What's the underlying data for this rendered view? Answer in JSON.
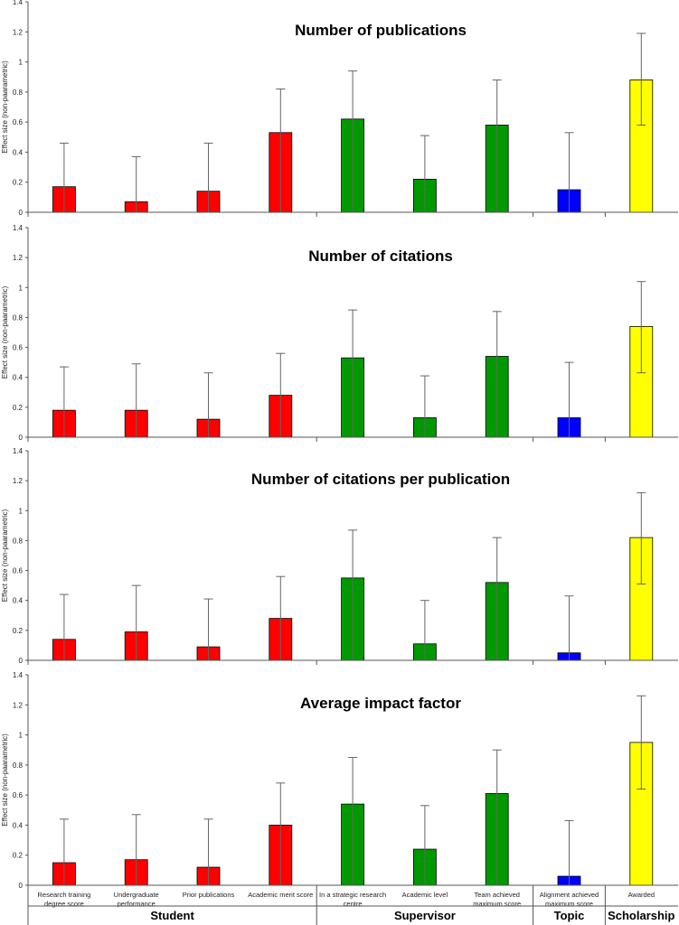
{
  "colors": {
    "student": "#ff0000",
    "supervisor": "#009900",
    "topic": "#0000ff",
    "scholarship": "#ffff00",
    "axis": "#555555",
    "error_bar": "#666666"
  },
  "chart_data": [
    {
      "type": "bar",
      "title": "Number of publications",
      "ylabel": "Effect size (non-paarametric)",
      "ylim": [
        0,
        1.4
      ],
      "yticks": [
        "0",
        "0.2",
        "0.4",
        "0.6",
        "0.8",
        "1",
        "1.2",
        "1.4"
      ],
      "categories": [
        "Research training degree score",
        "Undergraduate performance",
        "Prior publications",
        "Academic merit score",
        "In a strategic research centre",
        "Academic level",
        "Team achieved maximum score",
        "Alignment achieved maximum score",
        "Awarded"
      ],
      "values": [
        0.17,
        0.07,
        0.14,
        0.53,
        0.62,
        0.22,
        0.58,
        0.15,
        0.88
      ],
      "error_upper": [
        0.46,
        0.37,
        0.46,
        0.82,
        0.94,
        0.51,
        0.88,
        0.53,
        1.19
      ],
      "error_lower": [
        null,
        null,
        null,
        null,
        null,
        null,
        null,
        null,
        0.58
      ]
    },
    {
      "type": "bar",
      "title": "Number of citations",
      "ylabel": "Effect size (non-paarametric)",
      "ylim": [
        0,
        1.4
      ],
      "yticks": [
        "0",
        "0.2",
        "0.4",
        "0.6",
        "0.8",
        "1",
        "1.2",
        "1.4"
      ],
      "categories": [
        "Research training degree score",
        "Undergraduate performance",
        "Prior publications",
        "Academic merit score",
        "In a strategic research centre",
        "Academic level",
        "Team achieved maximum score",
        "Alignment achieved maximum score",
        "Awarded"
      ],
      "values": [
        0.18,
        0.18,
        0.12,
        0.28,
        0.53,
        0.13,
        0.54,
        0.13,
        0.74
      ],
      "error_upper": [
        0.47,
        0.49,
        0.43,
        0.56,
        0.85,
        0.41,
        0.84,
        0.5,
        1.04
      ],
      "error_lower": [
        null,
        null,
        null,
        null,
        null,
        null,
        null,
        null,
        0.43
      ]
    },
    {
      "type": "bar",
      "title": "Number of citations per publication",
      "ylabel": "Effect size (non-paarametric)",
      "ylim": [
        0,
        1.4
      ],
      "yticks": [
        "0",
        "0.2",
        "0.4",
        "0.6",
        "0.8",
        "1",
        "1.2",
        "1.4"
      ],
      "categories": [
        "Research training degree score",
        "Undergraduate performance",
        "Prior publications",
        "Academic merit score",
        "In a strategic research centre",
        "Academic level",
        "Team achieved maximum score",
        "Alignment achieved maximum score",
        "Awarded"
      ],
      "values": [
        0.14,
        0.19,
        0.09,
        0.28,
        0.55,
        0.11,
        0.52,
        0.05,
        0.82
      ],
      "error_upper": [
        0.44,
        0.5,
        0.41,
        0.56,
        0.87,
        0.4,
        0.82,
        0.43,
        1.12
      ],
      "error_lower": [
        null,
        null,
        null,
        null,
        null,
        null,
        null,
        null,
        0.51
      ]
    },
    {
      "type": "bar",
      "title": "Average impact factor",
      "ylabel": "Effect size (non-paarametric)",
      "ylim": [
        0,
        1.4
      ],
      "yticks": [
        "0",
        "0.2",
        "0.4",
        "0.6",
        "0.8",
        "1",
        "1.2",
        "1.4"
      ],
      "categories": [
        "Research training degree score",
        "Undergraduate performance",
        "Prior publications",
        "Academic merit score",
        "In a strategic research centre",
        "Academic level",
        "Team achieved maximum score",
        "Alignment achieved maximum score",
        "Awarded"
      ],
      "values": [
        0.15,
        0.17,
        0.12,
        0.4,
        0.54,
        0.24,
        0.61,
        0.06,
        0.95
      ],
      "error_upper": [
        0.44,
        0.47,
        0.44,
        0.68,
        0.85,
        0.53,
        0.9,
        0.43,
        1.26
      ],
      "error_lower": [
        null,
        null,
        null,
        null,
        null,
        null,
        null,
        null,
        0.64
      ]
    }
  ],
  "x_axis": {
    "category_labels": [
      [
        "Research training",
        "degree score"
      ],
      [
        "Undergraduate",
        "performance"
      ],
      [
        "Prior publications"
      ],
      [
        "Academic merit score"
      ],
      [
        "In a strategic research",
        "centre"
      ],
      [
        "Academic level"
      ],
      [
        "Team achieved",
        "maximum score"
      ],
      [
        "Alignment achieved",
        "maximum score"
      ],
      [
        "Awarded"
      ]
    ],
    "category_groups": [
      "student",
      "student",
      "student",
      "student",
      "supervisor",
      "supervisor",
      "supervisor",
      "topic",
      "scholarship"
    ],
    "groups": [
      {
        "key": "student",
        "label": "Student",
        "from": 0,
        "to": 3
      },
      {
        "key": "supervisor",
        "label": "Supervisor",
        "from": 4,
        "to": 6
      },
      {
        "key": "topic",
        "label": "Topic",
        "from": 7,
        "to": 7
      },
      {
        "key": "scholarship",
        "label": "Scholarship",
        "from": 8,
        "to": 8
      }
    ]
  }
}
